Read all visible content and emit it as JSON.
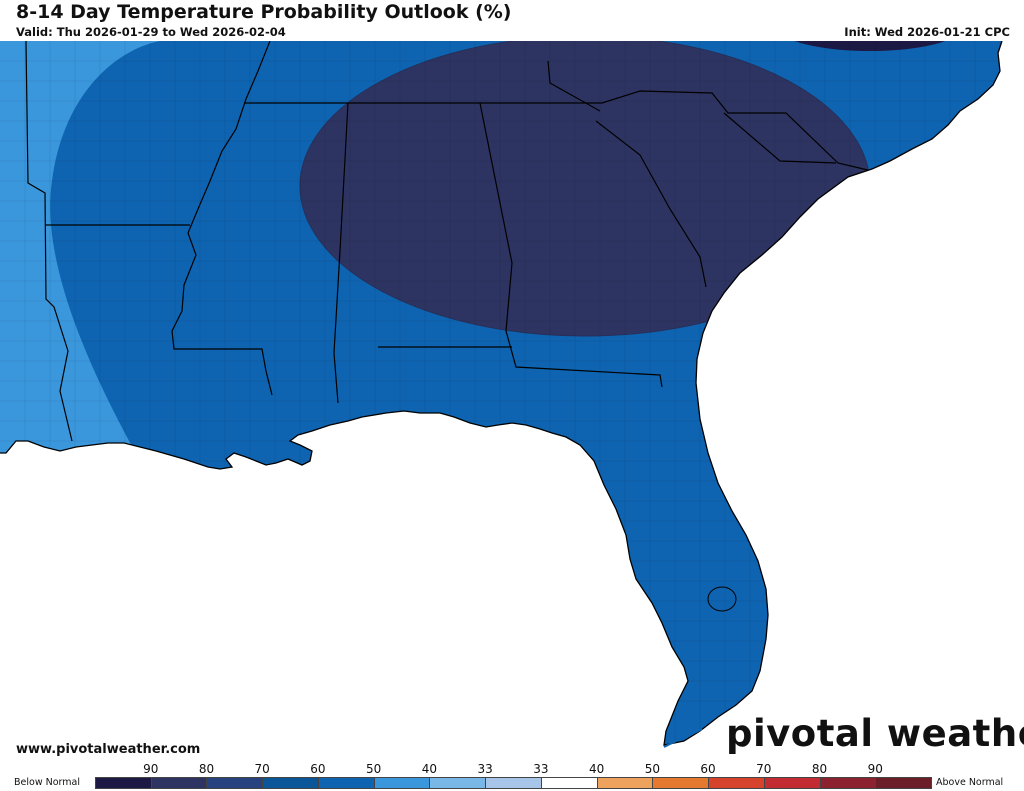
{
  "header": {
    "title": "8-14 Day Temperature Probability Outlook (%)",
    "valid": "Valid: Thu 2026-01-29 to Wed 2026-02-04",
    "init": "Init: Wed 2026-01-21 CPC"
  },
  "footer": {
    "website": "www.pivotalweather.com",
    "logo_text": "pivotal weather"
  },
  "legend": {
    "below_label": "Below Normal",
    "above_label": "Above Normal",
    "ticks": [
      "90",
      "80",
      "70",
      "60",
      "50",
      "40",
      "33",
      "33",
      "40",
      "50",
      "60",
      "70",
      "80",
      "90"
    ],
    "colors": [
      "#1c1a45",
      "#2e3462",
      "#26427f",
      "#0b5698",
      "#0e64b0",
      "#3a97dc",
      "#79b7e7",
      "#a7c5e8",
      "#ffffff",
      "#eda35d",
      "#e57930",
      "#d5432d",
      "#c12b31",
      "#8c2130",
      "#6c1e28"
    ]
  },
  "map": {
    "probability_colors": {
      "below_40_50": "#3a97dc",
      "below_50_60": "#0e64b0",
      "below_60_70": "#2e3462",
      "below_70_80": "#1c1a45"
    }
  }
}
